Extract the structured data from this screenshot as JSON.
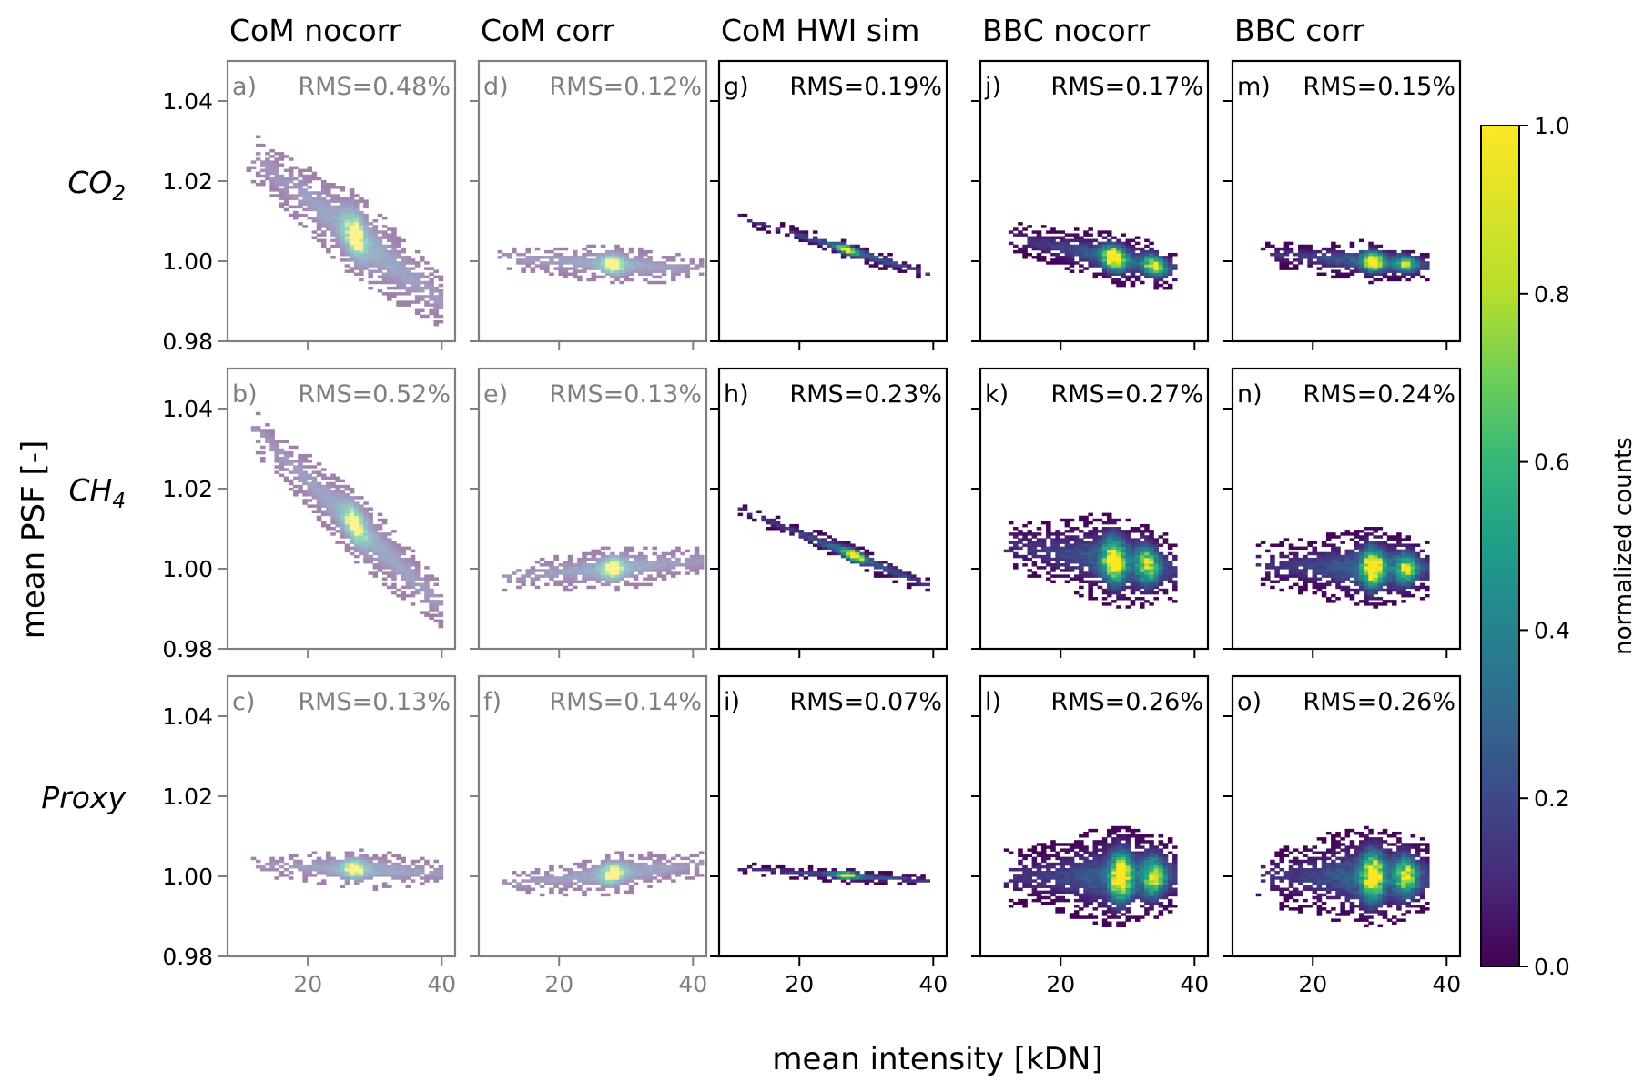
{
  "figure": {
    "xlabel": "mean intensity [kDN]",
    "ylabel": "mean PSF [-]",
    "muted_color": "#7f7f7f",
    "main_color": "#000000"
  },
  "columns": [
    {
      "title": "CoM nocorr",
      "muted": true
    },
    {
      "title": "CoM corr",
      "muted": true
    },
    {
      "title": "CoM HWI sim",
      "muted": false
    },
    {
      "title": "BBC nocorr",
      "muted": false
    },
    {
      "title": "BBC corr",
      "muted": false
    }
  ],
  "rows": [
    {
      "label_main": "CO",
      "label_sub": "2"
    },
    {
      "label_main": "CH",
      "label_sub": "4"
    },
    {
      "label_main": "Proxy",
      "label_sub": ""
    }
  ],
  "colorbar": {
    "label": "normalized counts",
    "colormap": "viridis",
    "range": [
      0.0,
      1.0
    ],
    "ticks": [
      "0.0",
      "0.2",
      "0.4",
      "0.6",
      "0.8",
      "1.0"
    ]
  },
  "chart_data": {
    "type": "heatmap",
    "layout": "3 rows x 5 columns of 2D histograms",
    "xlim": [
      8,
      42
    ],
    "ylim": [
      0.98,
      1.05
    ],
    "x_ticks": [
      "20",
      "40"
    ],
    "y_ticks": [
      "0.98",
      "1.00",
      "1.02",
      "1.04"
    ],
    "panels": [
      {
        "row": 0,
        "col": 0,
        "letter": "a)",
        "rms": "RMS=0.48%",
        "shape": {
          "x0": 11,
          "x1": 40,
          "y0": 1.027,
          "y1": 0.99,
          "sig": 0.003,
          "peaks": [
            [
              27,
              1.0
            ]
          ]
        }
      },
      {
        "row": 0,
        "col": 1,
        "letter": "d)",
        "rms": "RMS=0.12%",
        "shape": {
          "x0": 11,
          "x1": 41,
          "y0": 1.001,
          "y1": 0.998,
          "sig": 0.0013,
          "peaks": [
            [
              28,
              1.0
            ]
          ]
        }
      },
      {
        "row": 0,
        "col": 2,
        "letter": "g)",
        "rms": "RMS=0.19%",
        "shape": {
          "x0": 11,
          "x1": 39,
          "y0": 1.011,
          "y1": 0.997,
          "sig": 0.0006,
          "peaks": [
            [
              27,
              1.0
            ]
          ]
        }
      },
      {
        "row": 0,
        "col": 3,
        "letter": "j)",
        "rms": "RMS=0.17%",
        "shape": {
          "x0": 12,
          "x1": 37,
          "y0": 1.006,
          "y1": 0.998,
          "sig": 0.0018,
          "peaks": [
            [
              28,
              1.0
            ],
            [
              34,
              0.85
            ]
          ]
        }
      },
      {
        "row": 0,
        "col": 4,
        "letter": "m)",
        "rms": "RMS=0.15%",
        "shape": {
          "x0": 12,
          "x1": 37,
          "y0": 1.002,
          "y1": 0.999,
          "sig": 0.0014,
          "peaks": [
            [
              29,
              1.0
            ],
            [
              34,
              0.7
            ]
          ]
        }
      },
      {
        "row": 1,
        "col": 0,
        "letter": "b)",
        "rms": "RMS=0.52%",
        "shape": {
          "x0": 11,
          "x1": 40,
          "y0": 1.036,
          "y1": 0.991,
          "sig": 0.0025,
          "peaks": [
            [
              27,
              1.0
            ]
          ]
        }
      },
      {
        "row": 1,
        "col": 1,
        "letter": "e)",
        "rms": "RMS=0.13%",
        "shape": {
          "x0": 12,
          "x1": 41,
          "y0": 0.998,
          "y1": 1.002,
          "sig": 0.0015,
          "peaks": [
            [
              28,
              1.0
            ]
          ]
        }
      },
      {
        "row": 1,
        "col": 2,
        "letter": "h)",
        "rms": "RMS=0.23%",
        "shape": {
          "x0": 11,
          "x1": 39,
          "y0": 1.015,
          "y1": 0.996,
          "sig": 0.0008,
          "peaks": [
            [
              28,
              1.0
            ]
          ]
        }
      },
      {
        "row": 1,
        "col": 3,
        "letter": "k)",
        "rms": "RMS=0.27%",
        "shape": {
          "x0": 12,
          "x1": 37,
          "y0": 1.006,
          "y1": 1.0,
          "sig": 0.0032,
          "peaks": [
            [
              28,
              1.0
            ],
            [
              33,
              0.75
            ]
          ]
        }
      },
      {
        "row": 1,
        "col": 4,
        "letter": "n)",
        "rms": "RMS=0.24%",
        "shape": {
          "x0": 12,
          "x1": 37,
          "y0": 1.001,
          "y1": 1.0,
          "sig": 0.0028,
          "peaks": [
            [
              29,
              1.0
            ],
            [
              34,
              0.7
            ]
          ]
        }
      },
      {
        "row": 2,
        "col": 0,
        "letter": "c)",
        "rms": "RMS=0.13%",
        "shape": {
          "x0": 11,
          "x1": 40,
          "y0": 1.003,
          "y1": 1.001,
          "sig": 0.0013,
          "peaks": [
            [
              27,
              1.0
            ]
          ]
        }
      },
      {
        "row": 2,
        "col": 1,
        "letter": "f)",
        "rms": "RMS=0.14%",
        "shape": {
          "x0": 12,
          "x1": 41,
          "y0": 0.998,
          "y1": 1.003,
          "sig": 0.0014,
          "peaks": [
            [
              28,
              1.0
            ]
          ]
        }
      },
      {
        "row": 2,
        "col": 2,
        "letter": "i)",
        "rms": "RMS=0.07%",
        "shape": {
          "x0": 11,
          "x1": 39,
          "y0": 1.002,
          "y1": 0.999,
          "sig": 0.0005,
          "peaks": [
            [
              27,
              1.0
            ]
          ]
        }
      },
      {
        "row": 2,
        "col": 3,
        "letter": "l)",
        "rms": "RMS=0.26%",
        "shape": {
          "x0": 12,
          "x1": 37,
          "y0": 1.0,
          "y1": 1.0,
          "sig": 0.0035,
          "peaks": [
            [
              29,
              1.0
            ],
            [
              34,
              0.8
            ]
          ]
        }
      },
      {
        "row": 2,
        "col": 4,
        "letter": "o)",
        "rms": "RMS=0.26%",
        "shape": {
          "x0": 12,
          "x1": 37,
          "y0": 1.0,
          "y1": 1.0,
          "sig": 0.0035,
          "peaks": [
            [
              29,
              1.0
            ],
            [
              34,
              0.8
            ]
          ]
        }
      }
    ]
  }
}
